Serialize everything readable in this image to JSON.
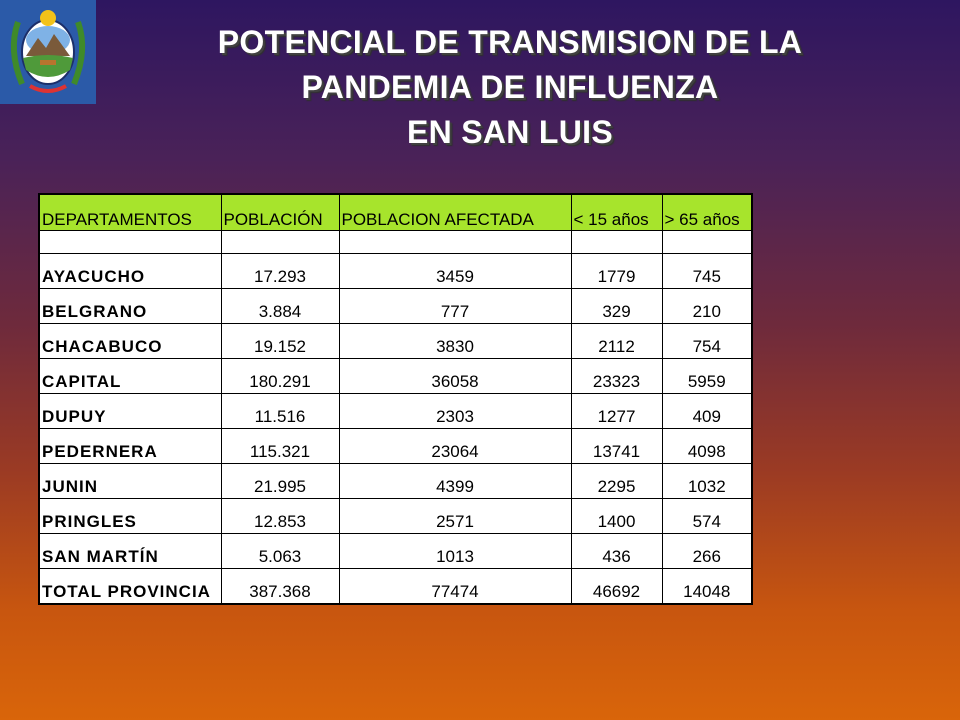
{
  "title": {
    "line1": "POTENCIAL DE TRANSMISION DE LA",
    "line2": "PANDEMIA DE INFLUENZA",
    "line3": "EN SAN LUIS"
  },
  "colors": {
    "header_fill": "#a7e42c",
    "seal_blue": "#2b5aa8"
  },
  "table": {
    "headers": [
      "DEPARTAMENTOS",
      "POBLACIÓN",
      "POBLACION AFECTADA",
      "< 15 años",
      "> 65 años"
    ],
    "rows": [
      [
        "AYACUCHO",
        "17.293",
        "3459",
        "1779",
        "745"
      ],
      [
        "BELGRANO",
        "3.884",
        "777",
        "329",
        "210"
      ],
      [
        "CHACABUCO",
        "19.152",
        "3830",
        "2112",
        "754"
      ],
      [
        "CAPITAL",
        "180.291",
        "36058",
        "23323",
        "5959"
      ],
      [
        "DUPUY",
        "11.516",
        "2303",
        "1277",
        "409"
      ],
      [
        "PEDERNERA",
        "115.321",
        "23064",
        "13741",
        "4098"
      ],
      [
        "JUNIN",
        "21.995",
        "4399",
        "2295",
        "1032"
      ],
      [
        "PRINGLES",
        "12.853",
        "2571",
        "1400",
        "574"
      ],
      [
        "SAN MARTÍN",
        "5.063",
        "1013",
        "436",
        "266"
      ],
      [
        "TOTAL PROVINCIA",
        "387.368",
        "77474",
        "46692",
        "14048"
      ]
    ]
  }
}
